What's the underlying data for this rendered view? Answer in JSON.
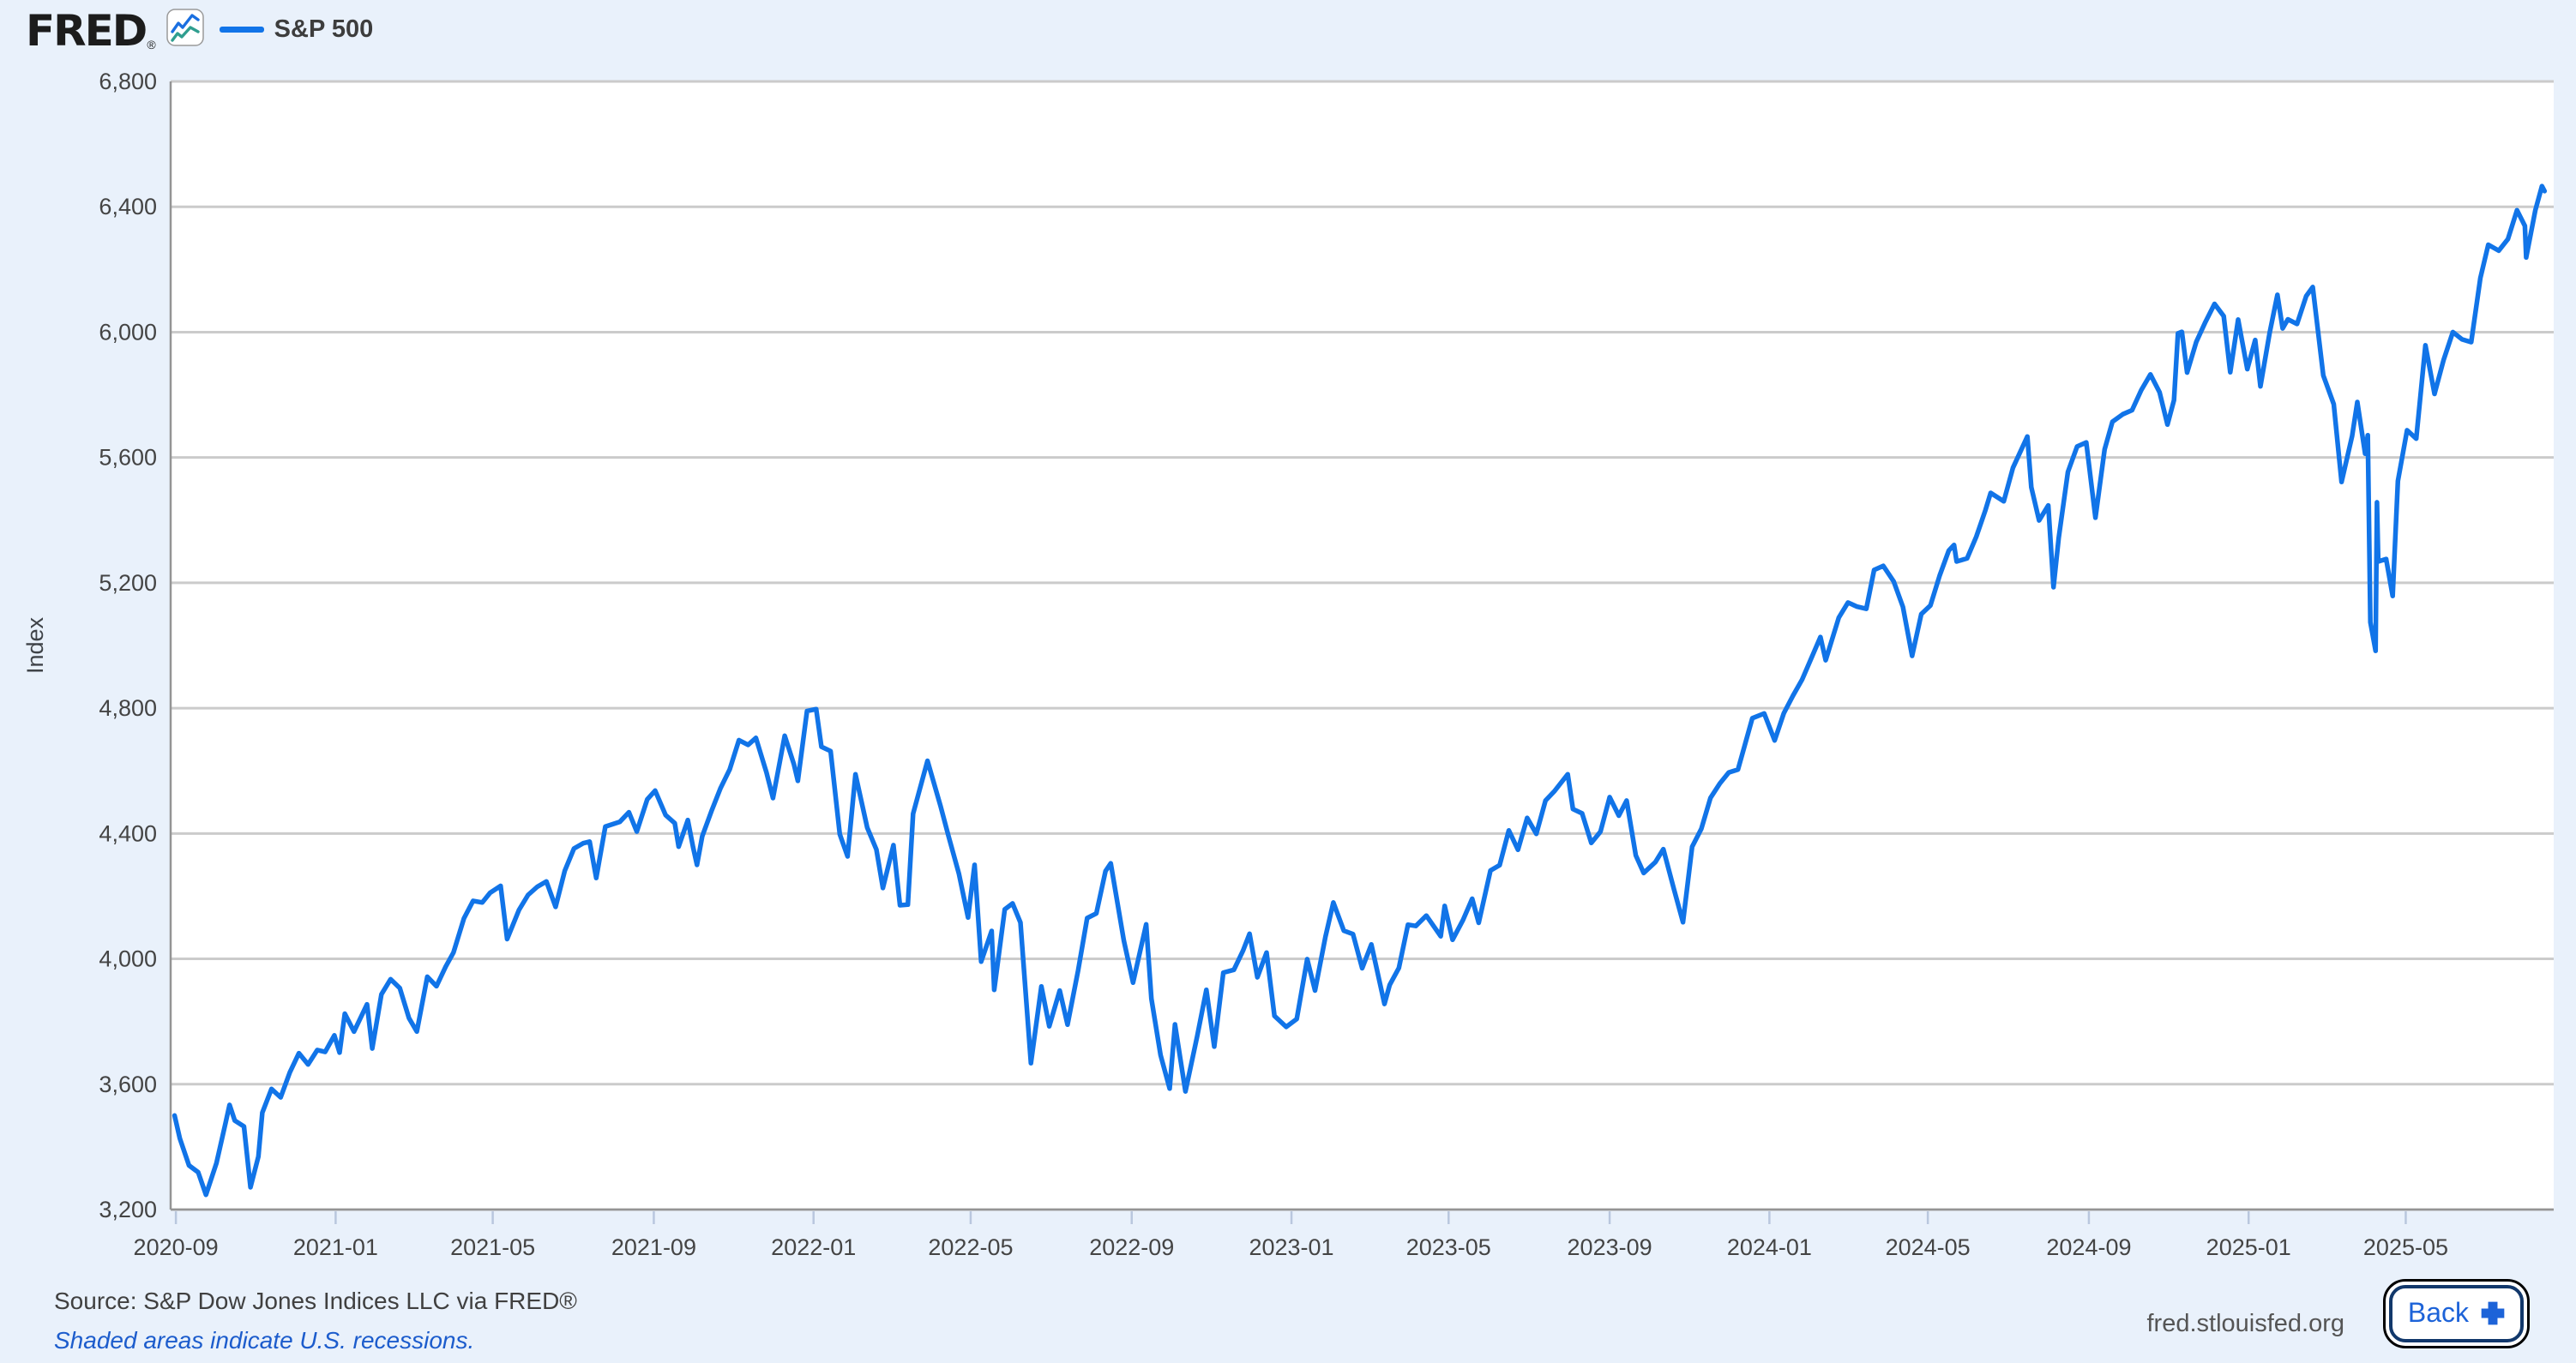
{
  "header": {
    "logo_text": "FRED",
    "logo_registered": "®",
    "legend": {
      "label": "S&P 500",
      "swatch_color": "#1174e8"
    }
  },
  "chart_data": {
    "type": "line",
    "series_name": "S&P 500",
    "ylabel": "Index",
    "ylim": [
      3200,
      6800
    ],
    "x_range": [
      "2020-08-28",
      "2025-08-22"
    ],
    "grid": true,
    "legend_position": "top-left",
    "line_color": "#1174e8",
    "y_ticks": [
      [
        3200,
        "3,200"
      ],
      [
        3600,
        "3,600"
      ],
      [
        4000,
        "4,000"
      ],
      [
        4400,
        "4,400"
      ],
      [
        4800,
        "4,800"
      ],
      [
        5200,
        "5,200"
      ],
      [
        5600,
        "5,600"
      ],
      [
        6000,
        "6,000"
      ],
      [
        6400,
        "6,400"
      ],
      [
        6800,
        "6,800"
      ]
    ],
    "x_ticks": [
      "2020-09",
      "2021-01",
      "2021-05",
      "2021-09",
      "2022-01",
      "2022-05",
      "2022-09",
      "2023-01",
      "2023-05",
      "2023-09",
      "2024-01",
      "2024-05",
      "2024-09",
      "2025-01",
      "2025-05"
    ],
    "points": [
      [
        "2020-08-31",
        3500
      ],
      [
        "2020-09-04",
        3427
      ],
      [
        "2020-09-11",
        3341
      ],
      [
        "2020-09-18",
        3319
      ],
      [
        "2020-09-24",
        3247
      ],
      [
        "2020-10-02",
        3348
      ],
      [
        "2020-10-09",
        3477
      ],
      [
        "2020-10-12",
        3534
      ],
      [
        "2020-10-16",
        3484
      ],
      [
        "2020-10-23",
        3465
      ],
      [
        "2020-10-28",
        3271
      ],
      [
        "2020-11-03",
        3369
      ],
      [
        "2020-11-06",
        3509
      ],
      [
        "2020-11-13",
        3585
      ],
      [
        "2020-11-20",
        3558
      ],
      [
        "2020-11-27",
        3638
      ],
      [
        "2020-12-04",
        3699
      ],
      [
        "2020-12-11",
        3663
      ],
      [
        "2020-12-18",
        3709
      ],
      [
        "2020-12-24",
        3703
      ],
      [
        "2020-12-31",
        3756
      ],
      [
        "2021-01-04",
        3701
      ],
      [
        "2021-01-08",
        3825
      ],
      [
        "2021-01-15",
        3768
      ],
      [
        "2021-01-25",
        3855
      ],
      [
        "2021-01-29",
        3714
      ],
      [
        "2021-02-05",
        3887
      ],
      [
        "2021-02-12",
        3935
      ],
      [
        "2021-02-19",
        3907
      ],
      [
        "2021-02-26",
        3811
      ],
      [
        "2021-03-04",
        3768
      ],
      [
        "2021-03-12",
        3943
      ],
      [
        "2021-03-19",
        3913
      ],
      [
        "2021-03-26",
        3975
      ],
      [
        "2021-04-01",
        4020
      ],
      [
        "2021-04-09",
        4129
      ],
      [
        "2021-04-16",
        4185
      ],
      [
        "2021-04-23",
        4180
      ],
      [
        "2021-04-29",
        4211
      ],
      [
        "2021-05-07",
        4233
      ],
      [
        "2021-05-12",
        4063
      ],
      [
        "2021-05-21",
        4156
      ],
      [
        "2021-05-28",
        4204
      ],
      [
        "2021-06-04",
        4230
      ],
      [
        "2021-06-11",
        4247
      ],
      [
        "2021-06-18",
        4166
      ],
      [
        "2021-06-25",
        4281
      ],
      [
        "2021-07-02",
        4352
      ],
      [
        "2021-07-09",
        4369
      ],
      [
        "2021-07-14",
        4374
      ],
      [
        "2021-07-19",
        4258
      ],
      [
        "2021-07-26",
        4422
      ],
      [
        "2021-08-06",
        4437
      ],
      [
        "2021-08-13",
        4468
      ],
      [
        "2021-08-19",
        4406
      ],
      [
        "2021-08-27",
        4509
      ],
      [
        "2021-09-02",
        4537
      ],
      [
        "2021-09-10",
        4459
      ],
      [
        "2021-09-17",
        4433
      ],
      [
        "2021-09-20",
        4358
      ],
      [
        "2021-09-27",
        4443
      ],
      [
        "2021-10-01",
        4357
      ],
      [
        "2021-10-04",
        4300
      ],
      [
        "2021-10-08",
        4391
      ],
      [
        "2021-10-15",
        4471
      ],
      [
        "2021-10-22",
        4545
      ],
      [
        "2021-10-29",
        4605
      ],
      [
        "2021-11-05",
        4698
      ],
      [
        "2021-11-12",
        4683
      ],
      [
        "2021-11-18",
        4705
      ],
      [
        "2021-11-26",
        4595
      ],
      [
        "2021-12-01",
        4513
      ],
      [
        "2021-12-10",
        4712
      ],
      [
        "2021-12-17",
        4621
      ],
      [
        "2021-12-20",
        4568
      ],
      [
        "2021-12-27",
        4791
      ],
      [
        "2022-01-03",
        4797
      ],
      [
        "2022-01-07",
        4677
      ],
      [
        "2022-01-14",
        4663
      ],
      [
        "2022-01-21",
        4398
      ],
      [
        "2022-01-27",
        4327
      ],
      [
        "2022-02-02",
        4589
      ],
      [
        "2022-02-11",
        4419
      ],
      [
        "2022-02-18",
        4349
      ],
      [
        "2022-02-23",
        4226
      ],
      [
        "2022-03-03",
        4363
      ],
      [
        "2022-03-08",
        4171
      ],
      [
        "2022-03-14",
        4173
      ],
      [
        "2022-03-18",
        4463
      ],
      [
        "2022-03-29",
        4632
      ],
      [
        "2022-04-08",
        4488
      ],
      [
        "2022-04-14",
        4393
      ],
      [
        "2022-04-22",
        4272
      ],
      [
        "2022-04-29",
        4132
      ],
      [
        "2022-05-04",
        4300
      ],
      [
        "2022-05-09",
        3991
      ],
      [
        "2022-05-17",
        4089
      ],
      [
        "2022-05-19",
        3901
      ],
      [
        "2022-05-27",
        4158
      ],
      [
        "2022-06-02",
        4177
      ],
      [
        "2022-06-08",
        4116
      ],
      [
        "2022-06-16",
        3667
      ],
      [
        "2022-06-24",
        3912
      ],
      [
        "2022-06-30",
        3785
      ],
      [
        "2022-07-08",
        3899
      ],
      [
        "2022-07-14",
        3790
      ],
      [
        "2022-07-22",
        3962
      ],
      [
        "2022-07-29",
        4130
      ],
      [
        "2022-08-05",
        4145
      ],
      [
        "2022-08-12",
        4280
      ],
      [
        "2022-08-16",
        4305
      ],
      [
        "2022-08-26",
        4058
      ],
      [
        "2022-09-02",
        3924
      ],
      [
        "2022-09-12",
        4110
      ],
      [
        "2022-09-16",
        3873
      ],
      [
        "2022-09-23",
        3693
      ],
      [
        "2022-09-30",
        3586
      ],
      [
        "2022-10-04",
        3791
      ],
      [
        "2022-10-12",
        3577
      ],
      [
        "2022-10-21",
        3753
      ],
      [
        "2022-10-28",
        3901
      ],
      [
        "2022-11-03",
        3720
      ],
      [
        "2022-11-10",
        3956
      ],
      [
        "2022-11-18",
        3965
      ],
      [
        "2022-11-25",
        4026
      ],
      [
        "2022-11-30",
        4080
      ],
      [
        "2022-12-06",
        3941
      ],
      [
        "2022-12-13",
        4020
      ],
      [
        "2022-12-19",
        3818
      ],
      [
        "2022-12-28",
        3783
      ],
      [
        "2023-01-05",
        3808
      ],
      [
        "2023-01-13",
        3999
      ],
      [
        "2023-01-19",
        3899
      ],
      [
        "2023-01-27",
        4071
      ],
      [
        "2023-02-02",
        4180
      ],
      [
        "2023-02-10",
        4090
      ],
      [
        "2023-02-17",
        4079
      ],
      [
        "2023-02-24",
        3970
      ],
      [
        "2023-03-03",
        4046
      ],
      [
        "2023-03-13",
        3856
      ],
      [
        "2023-03-17",
        3917
      ],
      [
        "2023-03-24",
        3971
      ],
      [
        "2023-03-31",
        4109
      ],
      [
        "2023-04-06",
        4105
      ],
      [
        "2023-04-14",
        4138
      ],
      [
        "2023-04-25",
        4072
      ],
      [
        "2023-04-28",
        4169
      ],
      [
        "2023-05-04",
        4061
      ],
      [
        "2023-05-12",
        4124
      ],
      [
        "2023-05-19",
        4192
      ],
      [
        "2023-05-24",
        4115
      ],
      [
        "2023-06-02",
        4282
      ],
      [
        "2023-06-09",
        4299
      ],
      [
        "2023-06-16",
        4410
      ],
      [
        "2023-06-23",
        4348
      ],
      [
        "2023-06-30",
        4450
      ],
      [
        "2023-07-07",
        4399
      ],
      [
        "2023-07-14",
        4505
      ],
      [
        "2023-07-21",
        4536
      ],
      [
        "2023-07-31",
        4589
      ],
      [
        "2023-08-04",
        4478
      ],
      [
        "2023-08-11",
        4464
      ],
      [
        "2023-08-18",
        4370
      ],
      [
        "2023-08-25",
        4406
      ],
      [
        "2023-09-01",
        4516
      ],
      [
        "2023-09-08",
        4457
      ],
      [
        "2023-09-14",
        4505
      ],
      [
        "2023-09-21",
        4330
      ],
      [
        "2023-09-27",
        4274
      ],
      [
        "2023-10-06",
        4309
      ],
      [
        "2023-10-12",
        4350
      ],
      [
        "2023-10-20",
        4224
      ],
      [
        "2023-10-27",
        4117
      ],
      [
        "2023-11-03",
        4358
      ],
      [
        "2023-11-10",
        4415
      ],
      [
        "2023-11-17",
        4514
      ],
      [
        "2023-11-24",
        4559
      ],
      [
        "2023-12-01",
        4595
      ],
      [
        "2023-12-08",
        4604
      ],
      [
        "2023-12-19",
        4768
      ],
      [
        "2023-12-28",
        4783
      ],
      [
        "2024-01-05",
        4697
      ],
      [
        "2024-01-12",
        4784
      ],
      [
        "2024-01-19",
        4840
      ],
      [
        "2024-01-26",
        4891
      ],
      [
        "2024-02-02",
        4959
      ],
      [
        "2024-02-09",
        5027
      ],
      [
        "2024-02-13",
        4953
      ],
      [
        "2024-02-23",
        5089
      ],
      [
        "2024-03-01",
        5137
      ],
      [
        "2024-03-08",
        5124
      ],
      [
        "2024-03-15",
        5117
      ],
      [
        "2024-03-21",
        5241
      ],
      [
        "2024-03-28",
        5254
      ],
      [
        "2024-04-05",
        5204
      ],
      [
        "2024-04-12",
        5123
      ],
      [
        "2024-04-19",
        4967
      ],
      [
        "2024-04-26",
        5100
      ],
      [
        "2024-05-03",
        5128
      ],
      [
        "2024-05-10",
        5223
      ],
      [
        "2024-05-17",
        5303
      ],
      [
        "2024-05-21",
        5321
      ],
      [
        "2024-05-23",
        5268
      ],
      [
        "2024-05-31",
        5278
      ],
      [
        "2024-06-07",
        5347
      ],
      [
        "2024-06-14",
        5432
      ],
      [
        "2024-06-18",
        5487
      ],
      [
        "2024-06-28",
        5460
      ],
      [
        "2024-07-05",
        5567
      ],
      [
        "2024-07-16",
        5667
      ],
      [
        "2024-07-19",
        5505
      ],
      [
        "2024-07-25",
        5399
      ],
      [
        "2024-08-01",
        5447
      ],
      [
        "2024-08-05",
        5186
      ],
      [
        "2024-08-09",
        5344
      ],
      [
        "2024-08-16",
        5554
      ],
      [
        "2024-08-23",
        5635
      ],
      [
        "2024-08-30",
        5648
      ],
      [
        "2024-09-06",
        5408
      ],
      [
        "2024-09-13",
        5626
      ],
      [
        "2024-09-19",
        5714
      ],
      [
        "2024-09-27",
        5738
      ],
      [
        "2024-10-04",
        5751
      ],
      [
        "2024-10-11",
        5815
      ],
      [
        "2024-10-18",
        5865
      ],
      [
        "2024-10-25",
        5808
      ],
      [
        "2024-10-31",
        5705
      ],
      [
        "2024-11-05",
        5783
      ],
      [
        "2024-11-08",
        5996
      ],
      [
        "2024-11-11",
        6001
      ],
      [
        "2024-11-15",
        5871
      ],
      [
        "2024-11-22",
        5969
      ],
      [
        "2024-11-29",
        6032
      ],
      [
        "2024-12-06",
        6090
      ],
      [
        "2024-12-13",
        6051
      ],
      [
        "2024-12-18",
        5872
      ],
      [
        "2024-12-24",
        6040
      ],
      [
        "2024-12-31",
        5882
      ],
      [
        "2025-01-06",
        5975
      ],
      [
        "2025-01-10",
        5827
      ],
      [
        "2025-01-17",
        5997
      ],
      [
        "2025-01-23",
        6119
      ],
      [
        "2025-01-27",
        6012
      ],
      [
        "2025-01-31",
        6041
      ],
      [
        "2025-02-07",
        6026
      ],
      [
        "2025-02-14",
        6115
      ],
      [
        "2025-02-19",
        6144
      ],
      [
        "2025-02-27",
        5862
      ],
      [
        "2025-03-07",
        5770
      ],
      [
        "2025-03-13",
        5522
      ],
      [
        "2025-03-21",
        5668
      ],
      [
        "2025-03-25",
        5777
      ],
      [
        "2025-03-31",
        5612
      ],
      [
        "2025-04-02",
        5671
      ],
      [
        "2025-04-04",
        5074
      ],
      [
        "2025-04-08",
        4983
      ],
      [
        "2025-04-09",
        5457
      ],
      [
        "2025-04-10",
        5268
      ],
      [
        "2025-04-16",
        5276
      ],
      [
        "2025-04-21",
        5158
      ],
      [
        "2025-04-25",
        5525
      ],
      [
        "2025-05-02",
        5687
      ],
      [
        "2025-05-09",
        5660
      ],
      [
        "2025-05-16",
        5958
      ],
      [
        "2025-05-23",
        5803
      ],
      [
        "2025-05-30",
        5912
      ],
      [
        "2025-06-06",
        6000
      ],
      [
        "2025-06-13",
        5977
      ],
      [
        "2025-06-20",
        5968
      ],
      [
        "2025-06-27",
        6173
      ],
      [
        "2025-07-03",
        6279
      ],
      [
        "2025-07-11",
        6260
      ],
      [
        "2025-07-18",
        6297
      ],
      [
        "2025-07-25",
        6389
      ],
      [
        "2025-07-31",
        6339
      ],
      [
        "2025-08-01",
        6238
      ],
      [
        "2025-08-08",
        6389
      ],
      [
        "2025-08-13",
        6466
      ],
      [
        "2025-08-15",
        6450
      ]
    ]
  },
  "footer": {
    "source": "Source: S&P Dow Jones Indices LLC via FRED®",
    "note": "Shaded areas indicate U.S. recessions.",
    "site": "fred.stlouisfed.org",
    "back_button": {
      "label": "Back"
    }
  }
}
